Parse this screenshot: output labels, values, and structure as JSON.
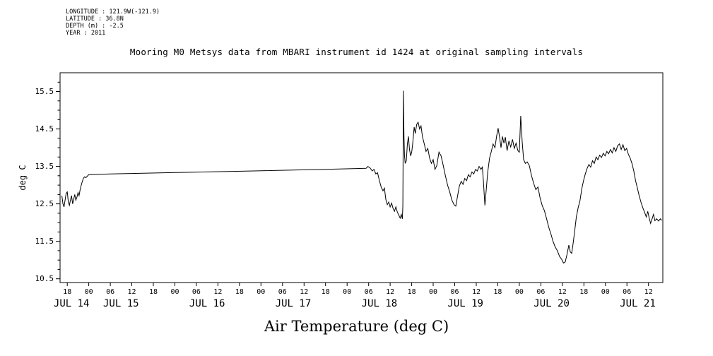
{
  "header": {
    "meta_lines": [
      "LONGITUDE : 121.9W(-121.9)",
      "LATITUDE : 36.8N",
      "DEPTH (m) : -2.5",
      "YEAR : 2011"
    ]
  },
  "chart_data": {
    "type": "line",
    "title": "Mooring M0 Metsys data from MBARI instrument id 1424 at original sampling intervals",
    "xlabel": "Air Temperature (deg C)",
    "ylabel": "deg C",
    "line_color": "#000000",
    "background": "#ffffff",
    "grid": false,
    "legend": "none",
    "x_unit": "hours since Jul 14 2011 00:00",
    "xlim": [
      16,
      184
    ],
    "ylim": [
      10.4,
      16.0
    ],
    "yticks": [
      10.5,
      11.5,
      12.5,
      13.5,
      14.5,
      15.5
    ],
    "y_minor_step": 0.25,
    "x_ticks": [
      {
        "t": 18,
        "label": "18"
      },
      {
        "t": 24,
        "label": "00"
      },
      {
        "t": 30,
        "label": "06"
      },
      {
        "t": 36,
        "label": "12"
      },
      {
        "t": 42,
        "label": "18"
      },
      {
        "t": 48,
        "label": "00"
      },
      {
        "t": 54,
        "label": "06"
      },
      {
        "t": 60,
        "label": "12"
      },
      {
        "t": 66,
        "label": "18"
      },
      {
        "t": 72,
        "label": "00"
      },
      {
        "t": 78,
        "label": "06"
      },
      {
        "t": 84,
        "label": "12"
      },
      {
        "t": 90,
        "label": "18"
      },
      {
        "t": 96,
        "label": "00"
      },
      {
        "t": 102,
        "label": "06"
      },
      {
        "t": 108,
        "label": "12"
      },
      {
        "t": 114,
        "label": "18"
      },
      {
        "t": 120,
        "label": "00"
      },
      {
        "t": 126,
        "label": "06"
      },
      {
        "t": 132,
        "label": "12"
      },
      {
        "t": 138,
        "label": "18"
      },
      {
        "t": 144,
        "label": "00"
      },
      {
        "t": 150,
        "label": "06"
      },
      {
        "t": 156,
        "label": "12"
      },
      {
        "t": 162,
        "label": "18"
      },
      {
        "t": 168,
        "label": "00"
      },
      {
        "t": 174,
        "label": "06"
      },
      {
        "t": 180,
        "label": "12"
      }
    ],
    "day_labels": [
      {
        "t": 19.2,
        "text": "JUL 14"
      },
      {
        "t": 33,
        "text": "JUL 15"
      },
      {
        "t": 57,
        "text": "JUL 16"
      },
      {
        "t": 81,
        "text": "JUL 17"
      },
      {
        "t": 105,
        "text": "JUL 18"
      },
      {
        "t": 129,
        "text": "JUL 19"
      },
      {
        "t": 153,
        "text": "JUL 20"
      },
      {
        "t": 177,
        "text": "JUL 21"
      }
    ],
    "points": [
      [
        16.5,
        12.72
      ],
      [
        16.8,
        12.5
      ],
      [
        17.1,
        12.42
      ],
      [
        17.4,
        12.6
      ],
      [
        17.7,
        12.78
      ],
      [
        18,
        12.82
      ],
      [
        18.3,
        12.55
      ],
      [
        18.6,
        12.46
      ],
      [
        18.9,
        12.6
      ],
      [
        19.2,
        12.72
      ],
      [
        19.5,
        12.5
      ],
      [
        19.8,
        12.62
      ],
      [
        20.1,
        12.75
      ],
      [
        20.4,
        12.6
      ],
      [
        20.7,
        12.68
      ],
      [
        21,
        12.8
      ],
      [
        21.3,
        12.72
      ],
      [
        21.6,
        12.88
      ],
      [
        21.9,
        13
      ],
      [
        22.2,
        13.1
      ],
      [
        22.5,
        13.18
      ],
      [
        22.8,
        13.22
      ],
      [
        23.2,
        13.2
      ],
      [
        23.6,
        13.24
      ],
      [
        24,
        13.28
      ],
      [
        30,
        13.3
      ],
      [
        50,
        13.34
      ],
      [
        70,
        13.38
      ],
      [
        90,
        13.42
      ],
      [
        101.3,
        13.45
      ],
      [
        101.8,
        13.5
      ],
      [
        102.4,
        13.46
      ],
      [
        103,
        13.38
      ],
      [
        103.5,
        13.42
      ],
      [
        104,
        13.3
      ],
      [
        104.5,
        13.33
      ],
      [
        105,
        13.12
      ],
      [
        105.5,
        12.95
      ],
      [
        106,
        12.85
      ],
      [
        106.4,
        12.92
      ],
      [
        106.8,
        12.62
      ],
      [
        107.2,
        12.48
      ],
      [
        107.6,
        12.55
      ],
      [
        108,
        12.42
      ],
      [
        108.4,
        12.52
      ],
      [
        108.8,
        12.38
      ],
      [
        109.2,
        12.3
      ],
      [
        109.6,
        12.42
      ],
      [
        110,
        12.28
      ],
      [
        110.4,
        12.2
      ],
      [
        110.8,
        12.12
      ],
      [
        111.1,
        12.22
      ],
      [
        111.4,
        12.1
      ],
      [
        111.55,
        12.45
      ],
      [
        111.7,
        15.52
      ],
      [
        111.85,
        14.3
      ],
      [
        112,
        13.8
      ],
      [
        112.2,
        13.58
      ],
      [
        112.5,
        13.65
      ],
      [
        112.8,
        14.1
      ],
      [
        113.1,
        14.3
      ],
      [
        113.4,
        13.95
      ],
      [
        113.7,
        13.78
      ],
      [
        114,
        13.88
      ],
      [
        114.3,
        14.12
      ],
      [
        114.7,
        14.55
      ],
      [
        115,
        14.38
      ],
      [
        115.4,
        14.62
      ],
      [
        115.8,
        14.68
      ],
      [
        116.2,
        14.5
      ],
      [
        116.6,
        14.58
      ],
      [
        117,
        14.3
      ],
      [
        117.5,
        14.1
      ],
      [
        118,
        13.9
      ],
      [
        118.5,
        13.98
      ],
      [
        119,
        13.72
      ],
      [
        119.5,
        13.58
      ],
      [
        120,
        13.68
      ],
      [
        120.5,
        13.42
      ],
      [
        121,
        13.52
      ],
      [
        121.6,
        13.88
      ],
      [
        122.2,
        13.78
      ],
      [
        122.8,
        13.52
      ],
      [
        123.4,
        13.25
      ],
      [
        124,
        13
      ],
      [
        124.6,
        12.82
      ],
      [
        125.2,
        12.6
      ],
      [
        125.8,
        12.48
      ],
      [
        126.3,
        12.44
      ],
      [
        126.8,
        12.72
      ],
      [
        127.3,
        12.98
      ],
      [
        127.8,
        13.1
      ],
      [
        128.3,
        13.02
      ],
      [
        128.8,
        13.18
      ],
      [
        129.3,
        13.12
      ],
      [
        129.8,
        13.28
      ],
      [
        130.3,
        13.22
      ],
      [
        130.8,
        13.35
      ],
      [
        131.3,
        13.3
      ],
      [
        131.8,
        13.42
      ],
      [
        132.3,
        13.38
      ],
      [
        132.8,
        13.5
      ],
      [
        133.3,
        13.42
      ],
      [
        133.7,
        13.48
      ],
      [
        134,
        13.1
      ],
      [
        134.4,
        12.46
      ],
      [
        134.8,
        12.9
      ],
      [
        135.2,
        13.35
      ],
      [
        135.7,
        13.72
      ],
      [
        136.2,
        13.9
      ],
      [
        136.7,
        14.1
      ],
      [
        137.2,
        14
      ],
      [
        137.7,
        14.32
      ],
      [
        138.1,
        14.52
      ],
      [
        138.5,
        14.28
      ],
      [
        138.9,
        14
      ],
      [
        139.3,
        14.3
      ],
      [
        139.7,
        14.12
      ],
      [
        140.1,
        14.28
      ],
      [
        140.6,
        13.92
      ],
      [
        141.1,
        14.18
      ],
      [
        141.6,
        14.02
      ],
      [
        142.1,
        14.22
      ],
      [
        142.6,
        13.98
      ],
      [
        143.1,
        14.12
      ],
      [
        143.6,
        13.92
      ],
      [
        144,
        13.88
      ],
      [
        144.4,
        14.85
      ],
      [
        144.8,
        14.15
      ],
      [
        145.2,
        13.68
      ],
      [
        145.7,
        13.58
      ],
      [
        146.2,
        13.62
      ],
      [
        146.8,
        13.52
      ],
      [
        147.4,
        13.25
      ],
      [
        148,
        13.05
      ],
      [
        148.6,
        12.88
      ],
      [
        149.2,
        12.95
      ],
      [
        149.8,
        12.65
      ],
      [
        150.4,
        12.45
      ],
      [
        151,
        12.32
      ],
      [
        151.6,
        12.1
      ],
      [
        152.2,
        11.88
      ],
      [
        152.8,
        11.7
      ],
      [
        153.4,
        11.5
      ],
      [
        154,
        11.35
      ],
      [
        154.6,
        11.25
      ],
      [
        155.2,
        11.1
      ],
      [
        155.8,
        11.02
      ],
      [
        156.3,
        10.92
      ],
      [
        156.8,
        10.95
      ],
      [
        157.3,
        11.15
      ],
      [
        157.8,
        11.4
      ],
      [
        158.2,
        11.22
      ],
      [
        158.6,
        11.18
      ],
      [
        159,
        11.45
      ],
      [
        159.4,
        11.75
      ],
      [
        159.9,
        12.15
      ],
      [
        160.4,
        12.4
      ],
      [
        160.9,
        12.58
      ],
      [
        161.4,
        12.9
      ],
      [
        161.9,
        13.12
      ],
      [
        162.4,
        13.3
      ],
      [
        162.9,
        13.45
      ],
      [
        163.4,
        13.55
      ],
      [
        163.9,
        13.48
      ],
      [
        164.4,
        13.65
      ],
      [
        164.9,
        13.58
      ],
      [
        165.4,
        13.75
      ],
      [
        165.9,
        13.68
      ],
      [
        166.4,
        13.8
      ],
      [
        166.9,
        13.74
      ],
      [
        167.4,
        13.85
      ],
      [
        167.9,
        13.78
      ],
      [
        168.4,
        13.9
      ],
      [
        168.9,
        13.84
      ],
      [
        169.4,
        13.95
      ],
      [
        169.9,
        13.86
      ],
      [
        170.4,
        14
      ],
      [
        170.9,
        13.9
      ],
      [
        171.4,
        14.05
      ],
      [
        171.9,
        14.1
      ],
      [
        172.4,
        13.95
      ],
      [
        172.9,
        14.08
      ],
      [
        173.4,
        13.92
      ],
      [
        173.9,
        13.98
      ],
      [
        174.4,
        13.82
      ],
      [
        174.9,
        13.72
      ],
      [
        175.4,
        13.58
      ],
      [
        175.9,
        13.38
      ],
      [
        176.4,
        13.12
      ],
      [
        176.9,
        12.92
      ],
      [
        177.4,
        12.72
      ],
      [
        177.9,
        12.55
      ],
      [
        178.4,
        12.4
      ],
      [
        178.9,
        12.28
      ],
      [
        179.4,
        12.15
      ],
      [
        179.8,
        12.3
      ],
      [
        180.2,
        12.12
      ],
      [
        180.6,
        11.98
      ],
      [
        181,
        12.1
      ],
      [
        181.4,
        12.22
      ],
      [
        181.8,
        12.05
      ],
      [
        182.3,
        12.1
      ],
      [
        182.8,
        12.04
      ],
      [
        183.3,
        12.1
      ],
      [
        183.7,
        12.06
      ]
    ]
  }
}
